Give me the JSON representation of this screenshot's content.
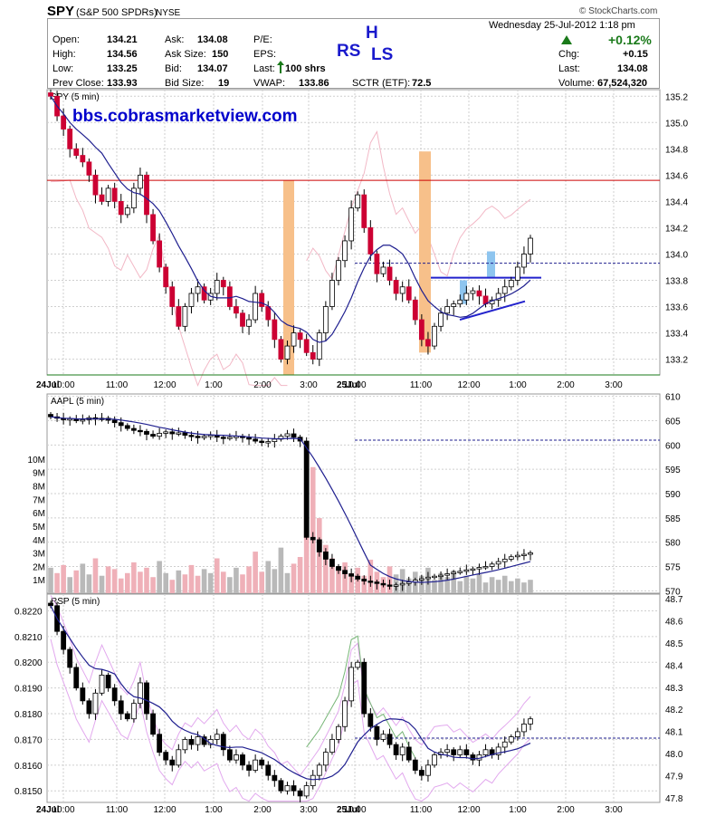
{
  "header": {
    "symbol": "SPY",
    "name": "(S&P 500 SPDRs)",
    "exchange": "NYSE",
    "brand": "© StockCharts.com",
    "date": "Wednesday  25-Jul-2012  1:18 pm",
    "change_pct": "+0.12%",
    "chg_label": "Chg:",
    "chg_value": "+0.15",
    "last_label": "Last:",
    "last_value": "134.08",
    "volume_label": "Volume:",
    "volume_value": "67,524,320",
    "open_label": "Open:",
    "open_value": "134.21",
    "high_label": "High:",
    "high_value": "134.56",
    "low_label": "Low:",
    "low_value": "133.25",
    "prev_label": "Prev Close:",
    "prev_value": "133.93",
    "ask_label": "Ask:",
    "ask_value": "134.08",
    "asksize_label": "Ask Size:",
    "asksize_value": "150",
    "bid_label": "Bid:",
    "bid_value": "134.07",
    "bidsize_label": "Bid Size:",
    "bidsize_value": "19",
    "pe_label": "P/E:",
    "eps_label": "EPS:",
    "lastshrs_label": "Last:",
    "lastshrs_value": "100 shrs",
    "vwap_label": "VWAP:",
    "vwap_value": "133.86",
    "sctr_label": "SCTR (ETF):",
    "sctr_value": "72.5"
  },
  "annotations": {
    "h": "H",
    "rs": "RS",
    "ls": "LS",
    "url": "bbs.cobrasmarketview.com"
  },
  "colors": {
    "up_candle": "#ffffff",
    "down_candle": "#cc0033",
    "ma": "#1f1f8f",
    "band": "#f2b8c6",
    "orange": "#f7c08a",
    "blue_bar": "#8ec5ef",
    "resistance": "#cc0000",
    "support": "#1a7a1a",
    "url": "#0000cc",
    "rsp_band": "#e2a8ee",
    "rsp_green": "#77b677"
  },
  "chart_data": [
    {
      "type": "candlestick",
      "title": "SPY (5 min)",
      "x_tick_labels": [
        "24Jul",
        "10:00",
        "11:00",
        "12:00",
        "1:00",
        "2:00",
        "3:00",
        "25Jul",
        "10:00",
        "11:00",
        "12:00",
        "1:00",
        "2:00",
        "3:00"
      ],
      "y_tick_labels": [
        "135.2",
        "135.0",
        "134.8",
        "134.6",
        "134.4",
        "134.2",
        "134.0",
        "133.8",
        "133.6",
        "133.4",
        "133.2"
      ],
      "ylim": [
        133.08,
        135.25
      ],
      "horizontal_lines": {
        "resistance": 134.56,
        "support": 133.08,
        "prev_close": 133.93
      },
      "close_series": [
        135.2,
        135.05,
        134.95,
        134.8,
        134.75,
        134.7,
        134.6,
        134.45,
        134.4,
        134.5,
        134.4,
        134.3,
        134.35,
        134.5,
        134.6,
        134.3,
        134.1,
        133.9,
        133.75,
        133.6,
        133.45,
        133.6,
        133.7,
        133.75,
        133.65,
        133.7,
        133.8,
        133.75,
        133.6,
        133.55,
        133.45,
        133.5,
        133.7,
        133.6,
        133.5,
        133.35,
        133.2,
        133.3,
        133.4,
        133.35,
        133.25,
        133.2,
        133.4,
        133.6,
        133.8,
        133.95,
        134.1,
        134.35,
        134.45,
        134.2,
        134.0,
        133.85,
        133.9,
        133.8,
        133.7,
        133.75,
        133.65,
        133.5,
        133.35,
        133.3,
        133.45,
        133.55,
        133.6,
        133.62,
        133.65,
        133.7,
        133.72,
        133.68,
        133.62,
        133.65,
        133.7,
        133.75,
        133.8,
        133.9,
        134.0,
        134.12
      ]
    },
    {
      "type": "candlestick",
      "title": "AAPL (5 min)",
      "y_tick_labels": [
        "610",
        "605",
        "600",
        "595",
        "590",
        "585",
        "580",
        "575",
        "570"
      ],
      "ylim": [
        569.5,
        610.5
      ],
      "horizontal_lines": {
        "prev_close": 601.0
      },
      "close_series": [
        605.8,
        605.5,
        605.2,
        605.4,
        605.0,
        605.2,
        605.6,
        605.3,
        605.5,
        605.1,
        604.6,
        604.0,
        603.4,
        603.0,
        602.8,
        602.2,
        601.8,
        602.4,
        602.7,
        602.3,
        602.5,
        602.0,
        601.8,
        601.5,
        601.8,
        602.0,
        601.6,
        601.4,
        601.6,
        601.8,
        601.5,
        601.2,
        600.8,
        600.5,
        600.7,
        601.2,
        601.8,
        602.3,
        601.6,
        600.8,
        581.0,
        580.5,
        578.0,
        576.5,
        575.0,
        574.2,
        573.5,
        573.0,
        572.4,
        572.0,
        571.8,
        571.5,
        571.2,
        571.0,
        571.2,
        571.5,
        571.8,
        572.2,
        572.5,
        572.8,
        573.0,
        573.2,
        573.5,
        573.8,
        574.0,
        574.3,
        574.5,
        574.8,
        575.0,
        575.5,
        576.0,
        576.5,
        577.0,
        577.3,
        577.5,
        577.8
      ],
      "volume_axis_labels": [
        "10M",
        "9M",
        "8M",
        "7M",
        "6M",
        "5M",
        "4M",
        "3M",
        "2M",
        "1M"
      ],
      "volume_millions": [
        1.9,
        1.5,
        2.1,
        1.2,
        1.7,
        2.2,
        1.4,
        2.6,
        1.3,
        2.0,
        1.8,
        1.1,
        1.5,
        2.3,
        1.6,
        1.9,
        1.2,
        2.4,
        1.5,
        1.0,
        1.7,
        1.4,
        2.1,
        1.3,
        1.8,
        1.5,
        2.6,
        1.6,
        1.2,
        1.9,
        1.4,
        2.0,
        3.1,
        1.6,
        2.4,
        1.8,
        3.4,
        1.5,
        2.2,
        2.7,
        8.2,
        9.4,
        5.6,
        3.6,
        2.6,
        1.8,
        2.3,
        1.5,
        1.9,
        1.3,
        2.5,
        1.6,
        1.2,
        2.0,
        1.4,
        1.8,
        1.1,
        1.6,
        1.3,
        1.9,
        1.0,
        1.5,
        1.2,
        1.7,
        0.9,
        1.3,
        1.1,
        1.4,
        0.8,
        1.2,
        1.0,
        1.3,
        0.9,
        1.1,
        0.8,
        1.0
      ]
    },
    {
      "type": "candlestick",
      "title": "RSP (5 min)",
      "y_tick_labels": [
        "0.8220",
        "0.8210",
        "0.8200",
        "0.8190",
        "0.8180",
        "0.8170",
        "0.8160",
        "0.8150"
      ],
      "y2_tick_labels": [
        "48.7",
        "48.6",
        "48.5",
        "48.4",
        "48.3",
        "48.2",
        "48.1",
        "48.0",
        "47.9",
        "47.8"
      ],
      "ylim": [
        0.81455,
        0.82265
      ],
      "horizontal_lines": {
        "prev_close": 0.81705
      },
      "close_series": [
        0.8222,
        0.8212,
        0.8205,
        0.8198,
        0.819,
        0.8185,
        0.818,
        0.8188,
        0.8195,
        0.819,
        0.8185,
        0.818,
        0.8178,
        0.8184,
        0.8192,
        0.818,
        0.8172,
        0.8165,
        0.8162,
        0.816,
        0.8166,
        0.817,
        0.8168,
        0.8171,
        0.8168,
        0.817,
        0.8172,
        0.8166,
        0.8162,
        0.8164,
        0.816,
        0.8158,
        0.8162,
        0.816,
        0.8156,
        0.8154,
        0.815,
        0.8152,
        0.815,
        0.8148,
        0.8152,
        0.8156,
        0.816,
        0.8165,
        0.817,
        0.8175,
        0.8185,
        0.8198,
        0.82,
        0.818,
        0.8175,
        0.817,
        0.8172,
        0.8168,
        0.8164,
        0.8167,
        0.8162,
        0.8158,
        0.8156,
        0.816,
        0.8164,
        0.8165,
        0.8166,
        0.8164,
        0.8166,
        0.8164,
        0.8162,
        0.8164,
        0.8166,
        0.8164,
        0.8167,
        0.8169,
        0.8171,
        0.8173,
        0.8176,
        0.8178
      ]
    }
  ]
}
